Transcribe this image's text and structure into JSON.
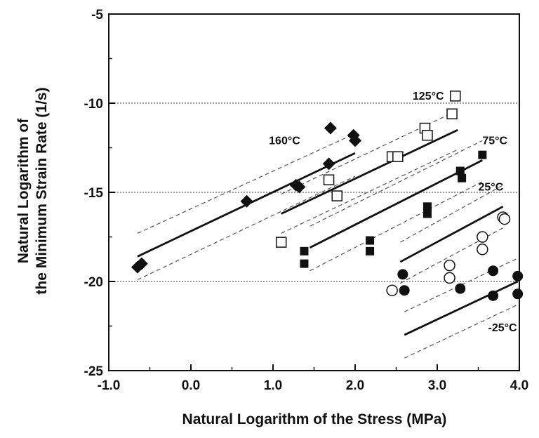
{
  "chart_data": {
    "type": "scatter",
    "title": "",
    "xlabel": "Natural Logarithm of the Stress  (MPa)",
    "ylabel_line1": "Natural Logarithm of",
    "ylabel_line2": "the Minimum Strain Rate  (1/s)",
    "xlim": [
      -1.0,
      4.0
    ],
    "ylim": [
      -25,
      -5
    ],
    "x_ticks": [
      -1.0,
      0.0,
      1.0,
      2.0,
      3.0,
      4.0
    ],
    "x_tick_labels": [
      "-1.0",
      "0.0",
      "1.0",
      "2.0",
      "3.0",
      "4.0"
    ],
    "y_ticks": [
      -25,
      -20,
      -15,
      -10,
      -5
    ],
    "y_tick_labels": [
      "-25",
      "-20",
      "-15",
      "-10",
      "-5"
    ],
    "reference_lines_y": [
      -10,
      -15,
      -20
    ],
    "grid": false,
    "series": [
      {
        "name": "160°C",
        "marker": "filled-diamond",
        "points": [
          [
            -0.65,
            -19.2
          ],
          [
            -0.6,
            -19.0
          ],
          [
            0.68,
            -15.5
          ],
          [
            1.28,
            -14.6
          ],
          [
            1.32,
            -14.7
          ],
          [
            1.68,
            -13.4
          ],
          [
            1.7,
            -11.4
          ],
          [
            1.98,
            -11.8
          ],
          [
            2.0,
            -12.1
          ]
        ],
        "fit": [
          [
            -0.65,
            -18.6
          ],
          [
            2.0,
            -12.8
          ]
        ],
        "band_upper": [
          [
            -0.65,
            -17.3
          ],
          [
            2.0,
            -11.7
          ]
        ],
        "band_lower": [
          [
            -0.65,
            -19.9
          ],
          [
            2.0,
            -14.1
          ]
        ]
      },
      {
        "name": "125°C",
        "marker": "open-square",
        "points": [
          [
            1.1,
            -17.8
          ],
          [
            1.68,
            -14.3
          ],
          [
            1.78,
            -15.2
          ],
          [
            2.45,
            -13.0
          ],
          [
            2.52,
            -13.0
          ],
          [
            2.85,
            -11.4
          ],
          [
            2.88,
            -11.8
          ],
          [
            3.18,
            -10.6
          ],
          [
            3.22,
            -9.6
          ]
        ],
        "fit": [
          [
            1.1,
            -16.2
          ],
          [
            3.25,
            -11.5
          ]
        ],
        "band_upper": [
          [
            1.1,
            -15.1
          ],
          [
            3.25,
            -10.4
          ]
        ],
        "band_lower": [
          [
            1.1,
            -17.3
          ],
          [
            3.25,
            -12.6
          ]
        ]
      },
      {
        "name": "75°C",
        "marker": "filled-square",
        "points": [
          [
            1.38,
            -18.3
          ],
          [
            1.38,
            -19.0
          ],
          [
            2.18,
            -17.7
          ],
          [
            2.18,
            -18.3
          ],
          [
            2.88,
            -15.8
          ],
          [
            2.88,
            -16.2
          ],
          [
            3.28,
            -13.8
          ],
          [
            3.3,
            -14.2
          ],
          [
            3.55,
            -12.9
          ]
        ],
        "fit": [
          [
            1.45,
            -18.1
          ],
          [
            3.55,
            -13.2
          ]
        ],
        "band_upper": [
          [
            1.45,
            -16.9
          ],
          [
            3.55,
            -12.1
          ]
        ],
        "band_lower": [
          [
            1.45,
            -19.4
          ],
          [
            3.55,
            -14.4
          ]
        ]
      },
      {
        "name": "25°C",
        "marker": "open-circle",
        "points": [
          [
            2.45,
            -20.5
          ],
          [
            3.15,
            -19.1
          ],
          [
            3.15,
            -19.8
          ],
          [
            3.55,
            -17.5
          ],
          [
            3.55,
            -18.2
          ],
          [
            3.8,
            -16.4
          ],
          [
            3.82,
            -16.5
          ]
        ],
        "fit": [
          [
            2.55,
            -18.9
          ],
          [
            3.8,
            -15.8
          ]
        ],
        "band_upper": [
          [
            2.55,
            -17.8
          ],
          [
            3.8,
            -14.6
          ]
        ],
        "band_lower": [
          [
            2.55,
            -20.1
          ],
          [
            3.8,
            -17.0
          ]
        ]
      },
      {
        "name": "-25°C",
        "marker": "filled-circle",
        "points": [
          [
            2.58,
            -19.6
          ],
          [
            2.6,
            -20.5
          ],
          [
            3.28,
            -20.4
          ],
          [
            3.68,
            -19.4
          ],
          [
            3.68,
            -20.8
          ],
          [
            3.98,
            -19.7
          ],
          [
            3.98,
            -20.7
          ]
        ],
        "fit": [
          [
            2.6,
            -23.0
          ],
          [
            3.98,
            -20.0
          ]
        ],
        "band_upper": [
          [
            2.6,
            -21.7
          ],
          [
            3.98,
            -18.7
          ]
        ],
        "band_lower": [
          [
            2.6,
            -24.3
          ],
          [
            3.98,
            -21.3
          ]
        ]
      }
    ],
    "series_label_positions": {
      "160°C": [
        0.95,
        -12.1
      ],
      "125°C": [
        2.7,
        -9.6
      ],
      "75°C": [
        3.55,
        -12.1
      ],
      "25°C": [
        3.5,
        -14.7
      ],
      "-25°C": [
        3.62,
        -22.6
      ]
    }
  }
}
